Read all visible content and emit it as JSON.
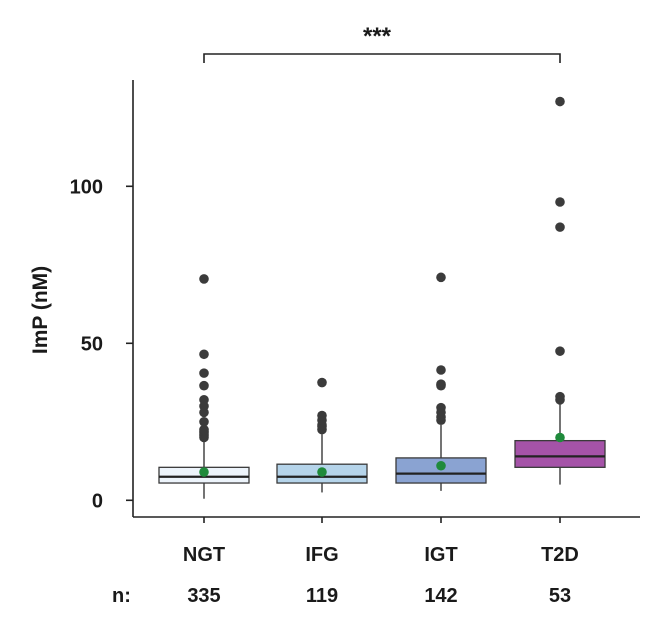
{
  "chart_data": {
    "type": "boxplot",
    "title": "",
    "xlabel": "",
    "ylabel": "ImP (nM)",
    "ylim": [
      -5,
      130
    ],
    "yticks": [
      0,
      50,
      100
    ],
    "categories": [
      "NGT",
      "IFG",
      "IGT",
      "T2D"
    ],
    "n_label": "n:",
    "n_values": [
      "335",
      "119",
      "142",
      "53"
    ],
    "significance": {
      "from": "NGT",
      "to": "T2D",
      "label": "***"
    },
    "groups": [
      {
        "name": "NGT",
        "color": "#edf4fb",
        "whisker_low": 0.5,
        "q1": 5.5,
        "median": 7.5,
        "q3": 10.5,
        "whisker_high": 19,
        "mean": 9,
        "outliers": [
          20,
          20.5,
          21,
          21.5,
          22,
          22.5,
          25,
          28,
          30,
          32,
          36.5,
          40.5,
          46.5,
          70.5
        ]
      },
      {
        "name": "IFG",
        "color": "#b5d4ea",
        "whisker_low": 2.5,
        "q1": 5.5,
        "median": 7.5,
        "q3": 11.5,
        "whisker_high": 21,
        "mean": 9,
        "outliers": [
          22.5,
          23.5,
          24,
          25.5,
          27,
          37.5
        ]
      },
      {
        "name": "IGT",
        "color": "#8aa3d2",
        "whisker_low": 3,
        "q1": 5.5,
        "median": 8.5,
        "q3": 13.5,
        "whisker_high": 24,
        "mean": 11,
        "outliers": [
          25.5,
          26.5,
          28,
          29.5,
          36.5,
          37,
          41.5,
          71
        ]
      },
      {
        "name": "T2D",
        "color": "#a553a8",
        "whisker_low": 5,
        "q1": 10.5,
        "median": 14,
        "q3": 19,
        "whisker_high": 31,
        "mean": 20,
        "outliers": [
          32,
          33,
          47.5,
          87,
          95,
          127
        ]
      }
    ],
    "colors": {
      "outlier": "#3b3b3b",
      "mean": "#1f8a3b",
      "line": "#2a2a2a"
    }
  }
}
